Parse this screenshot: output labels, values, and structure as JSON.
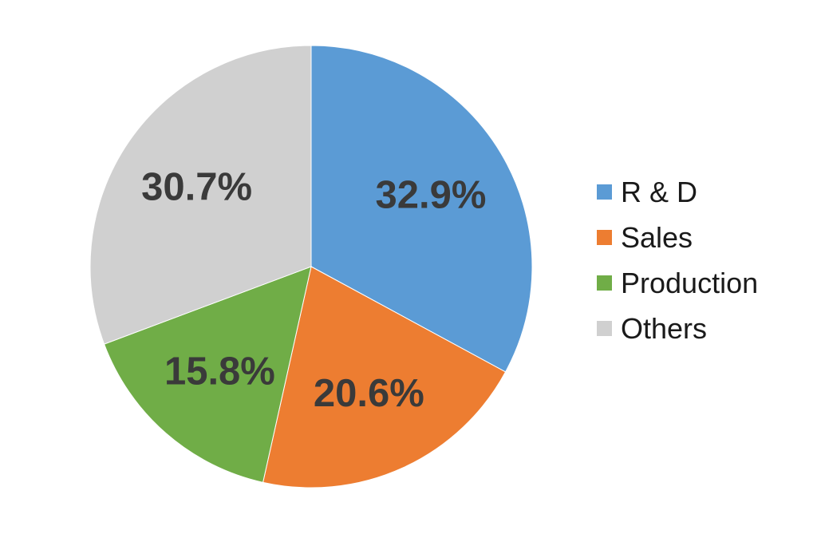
{
  "chart_data": {
    "type": "pie",
    "title": "",
    "categories": [
      "R & D",
      "Sales",
      "Production",
      "Others"
    ],
    "values": [
      32.9,
      20.6,
      15.8,
      30.7
    ],
    "value_labels": [
      "32.9%",
      "20.6%",
      "15.8%",
      "30.7%"
    ],
    "colors": [
      "#5b9bd5",
      "#ed7d31",
      "#70ad47",
      "#d0d0d0"
    ],
    "start_angle": "12 o'clock",
    "direction": "clockwise",
    "legend_position": "right"
  }
}
